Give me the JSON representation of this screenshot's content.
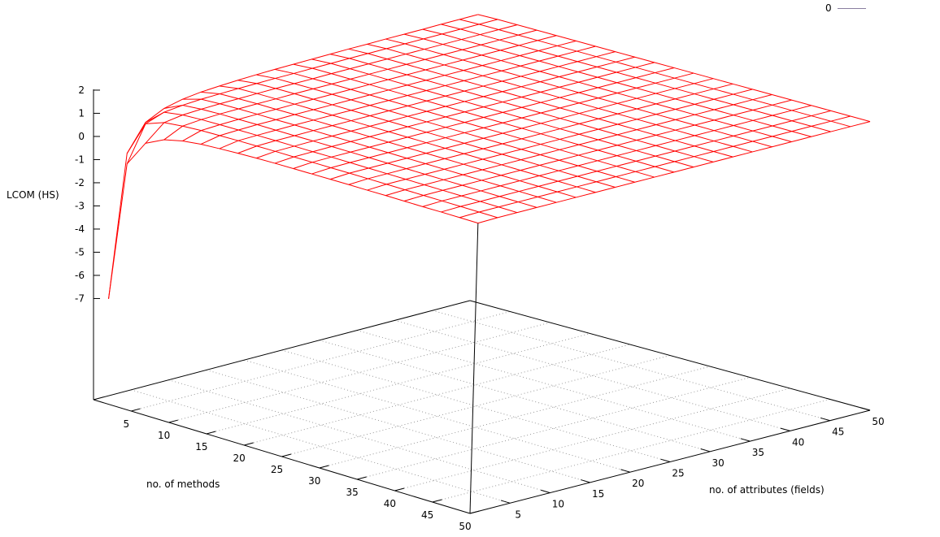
{
  "chart_data": {
    "type": "surface",
    "zlabel": "LCOM (HS)",
    "xlabel": "no. of methods",
    "ylabel": "no. of attributes (fields)",
    "x_range": [
      0,
      50
    ],
    "y_range": [
      0,
      50
    ],
    "z_ticks": [
      2,
      1,
      0,
      -1,
      -2,
      -3,
      -4,
      -5,
      -6,
      -7
    ],
    "x_ticks": [
      5,
      10,
      15,
      20,
      25,
      30,
      35,
      40,
      45,
      50
    ],
    "y_ticks": [
      5,
      10,
      15,
      20,
      25,
      30,
      35,
      40,
      45,
      50
    ],
    "grid": "dotted base grid",
    "legend": {
      "position": "top-right",
      "entries": [
        {
          "name": "0",
          "color": "#8a7fa0"
        }
      ]
    },
    "surface_color": "#ff0000",
    "x_grid": [
      1,
      3.45,
      5.9,
      8.35,
      10.8,
      13.25,
      15.7,
      18.15,
      20.6,
      23.05,
      25.5,
      27.95,
      30.4,
      32.85,
      35.3,
      37.75,
      40.2,
      42.65,
      45.1,
      47.55,
      50
    ],
    "y_grid": [
      1,
      3.45,
      5.9,
      8.35,
      10.8,
      13.25,
      15.7,
      18.15,
      20.6,
      23.05,
      25.5,
      27.95,
      30.4,
      32.85,
      35.3,
      37.75,
      40.2,
      42.65,
      45.1,
      47.55,
      50
    ],
    "z": [
      [
        -7.0,
        -0.93,
        0.2,
        0.59,
        0.78,
        0.88,
        0.93,
        0.97,
        1.0,
        1.02,
        1.03,
        1.04,
        1.05,
        1.06,
        1.06,
        1.07,
        1.07,
        1.07,
        1.08,
        1.08,
        1.08
      ],
      [
        -0.93,
        0.59,
        0.88,
        0.97,
        1.02,
        1.04,
        1.06,
        1.07,
        1.08,
        1.08,
        1.09,
        1.09,
        1.1,
        1.1,
        1.1,
        1.1,
        1.1,
        1.1,
        1.1,
        1.1,
        1.1
      ],
      [
        0.2,
        0.88,
        1.0,
        1.04,
        1.06,
        1.07,
        1.08,
        1.09,
        1.09,
        1.09,
        1.1,
        1.1,
        1.1,
        1.1,
        1.1,
        1.1,
        1.1,
        1.1,
        1.1,
        1.1,
        1.1
      ],
      [
        0.59,
        0.97,
        1.04,
        1.07,
        1.08,
        1.09,
        1.09,
        1.1,
        1.1,
        1.1,
        1.1,
        1.1,
        1.1,
        1.1,
        1.1,
        1.1,
        1.1,
        1.1,
        1.1,
        1.1,
        1.1
      ],
      [
        0.78,
        1.02,
        1.06,
        1.08,
        1.09,
        1.09,
        1.1,
        1.1,
        1.1,
        1.1,
        1.1,
        1.1,
        1.1,
        1.1,
        1.1,
        1.1,
        1.1,
        1.1,
        1.1,
        1.1,
        1.1
      ],
      [
        0.88,
        1.04,
        1.07,
        1.09,
        1.09,
        1.1,
        1.1,
        1.1,
        1.1,
        1.1,
        1.1,
        1.1,
        1.1,
        1.1,
        1.1,
        1.1,
        1.1,
        1.1,
        1.1,
        1.1,
        1.1
      ],
      [
        0.93,
        1.06,
        1.08,
        1.09,
        1.1,
        1.1,
        1.1,
        1.1,
        1.1,
        1.1,
        1.1,
        1.1,
        1.1,
        1.1,
        1.1,
        1.1,
        1.1,
        1.1,
        1.1,
        1.1,
        1.1
      ],
      [
        0.97,
        1.07,
        1.09,
        1.09,
        1.1,
        1.1,
        1.1,
        1.1,
        1.1,
        1.1,
        1.1,
        1.1,
        1.1,
        1.1,
        1.1,
        1.1,
        1.1,
        1.1,
        1.1,
        1.1,
        1.1
      ],
      [
        1.0,
        1.08,
        1.09,
        1.1,
        1.1,
        1.1,
        1.1,
        1.1,
        1.1,
        1.1,
        1.1,
        1.1,
        1.1,
        1.1,
        1.1,
        1.1,
        1.1,
        1.1,
        1.1,
        1.1,
        1.1
      ],
      [
        1.02,
        1.08,
        1.09,
        1.1,
        1.1,
        1.1,
        1.1,
        1.1,
        1.1,
        1.1,
        1.1,
        1.1,
        1.1,
        1.1,
        1.1,
        1.1,
        1.1,
        1.1,
        1.1,
        1.1,
        1.1
      ],
      [
        1.03,
        1.09,
        1.1,
        1.1,
        1.1,
        1.1,
        1.1,
        1.1,
        1.1,
        1.1,
        1.1,
        1.1,
        1.1,
        1.1,
        1.1,
        1.1,
        1.1,
        1.1,
        1.1,
        1.1,
        1.1
      ],
      [
        1.04,
        1.09,
        1.1,
        1.1,
        1.1,
        1.1,
        1.1,
        1.1,
        1.1,
        1.1,
        1.1,
        1.1,
        1.1,
        1.1,
        1.1,
        1.1,
        1.1,
        1.1,
        1.1,
        1.1,
        1.1
      ],
      [
        1.05,
        1.1,
        1.1,
        1.1,
        1.1,
        1.1,
        1.1,
        1.1,
        1.1,
        1.1,
        1.1,
        1.1,
        1.1,
        1.1,
        1.1,
        1.1,
        1.1,
        1.1,
        1.1,
        1.1,
        1.1
      ],
      [
        1.06,
        1.1,
        1.1,
        1.1,
        1.1,
        1.1,
        1.1,
        1.1,
        1.1,
        1.1,
        1.1,
        1.1,
        1.1,
        1.1,
        1.1,
        1.1,
        1.1,
        1.1,
        1.1,
        1.1,
        1.1
      ],
      [
        1.06,
        1.1,
        1.1,
        1.1,
        1.1,
        1.1,
        1.1,
        1.1,
        1.1,
        1.1,
        1.1,
        1.1,
        1.1,
        1.1,
        1.1,
        1.1,
        1.1,
        1.1,
        1.1,
        1.1,
        1.1
      ],
      [
        1.07,
        1.1,
        1.1,
        1.1,
        1.1,
        1.1,
        1.1,
        1.1,
        1.1,
        1.1,
        1.1,
        1.1,
        1.1,
        1.1,
        1.1,
        1.1,
        1.1,
        1.1,
        1.1,
        1.1,
        1.1
      ],
      [
        1.07,
        1.1,
        1.1,
        1.1,
        1.1,
        1.1,
        1.1,
        1.1,
        1.1,
        1.1,
        1.1,
        1.1,
        1.1,
        1.1,
        1.1,
        1.1,
        1.1,
        1.1,
        1.1,
        1.1,
        1.1
      ],
      [
        1.07,
        1.1,
        1.1,
        1.1,
        1.1,
        1.1,
        1.1,
        1.1,
        1.1,
        1.1,
        1.1,
        1.1,
        1.1,
        1.1,
        1.1,
        1.1,
        1.1,
        1.1,
        1.1,
        1.1,
        1.1
      ],
      [
        1.08,
        1.1,
        1.1,
        1.1,
        1.1,
        1.1,
        1.1,
        1.1,
        1.1,
        1.1,
        1.1,
        1.1,
        1.1,
        1.1,
        1.1,
        1.1,
        1.1,
        1.1,
        1.1,
        1.1,
        1.1
      ],
      [
        1.08,
        1.1,
        1.1,
        1.1,
        1.1,
        1.1,
        1.1,
        1.1,
        1.1,
        1.1,
        1.1,
        1.1,
        1.1,
        1.1,
        1.1,
        1.1,
        1.1,
        1.1,
        1.1,
        1.1,
        1.1
      ],
      [
        1.08,
        1.1,
        1.1,
        1.1,
        1.1,
        1.1,
        1.1,
        1.1,
        1.1,
        1.1,
        1.1,
        1.1,
        1.1,
        1.1,
        1.1,
        1.1,
        1.1,
        1.1,
        1.1,
        1.1,
        1.1
      ]
    ]
  }
}
